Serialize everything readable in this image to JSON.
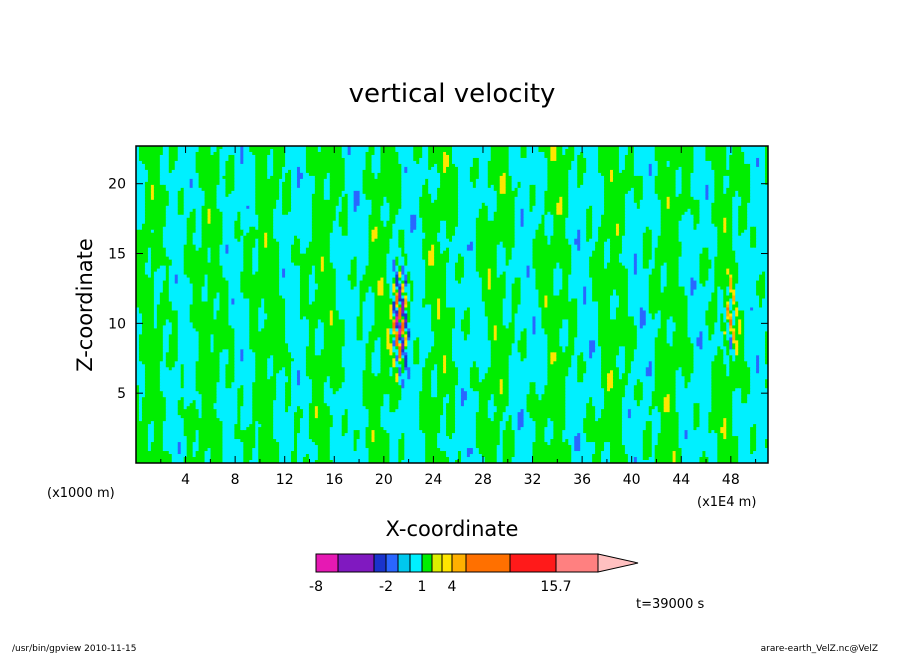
{
  "chart_data": {
    "type": "heatmap",
    "title": "vertical velocity",
    "xlabel": "X-coordinate",
    "ylabel": "Z-coordinate",
    "x_unit": "(x1E4 m)",
    "y_unit": "(x1000 m)",
    "xlim": [
      0,
      51
    ],
    "ylim": [
      0,
      22.7
    ],
    "x_ticks": [
      4,
      8,
      12,
      16,
      20,
      24,
      28,
      32,
      36,
      40,
      44,
      48
    ],
    "y_ticks": [
      5,
      10,
      15,
      20
    ],
    "colorbar": {
      "levels": [
        -8,
        -5,
        -3,
        -2,
        -1,
        0,
        1,
        2,
        3,
        4,
        7,
        11,
        15.7
      ],
      "colors": [
        "#e619b3",
        "#8019c0",
        "#1a33cc",
        "#2a66ff",
        "#00c8ee",
        "#00f0ff",
        "#00ee00",
        "#ddee00",
        "#ffe500",
        "#ffb000",
        "#ff7000",
        "#ff1a1a",
        "#ff8080",
        "#ffc0c0"
      ],
      "labels": [
        "-8",
        "-2",
        "1",
        "4",
        "15.7"
      ]
    },
    "plume_x": [
      21.3,
      48.0
    ],
    "time_label": "t=39000 s"
  },
  "footer": {
    "left": "/usr/bin/gpview   2010-11-15",
    "right": "arare-earth_VelZ.nc@VelZ"
  },
  "colors": {
    "positive": "#00ee00",
    "negative": "#00f0ff",
    "contour": "#222222"
  }
}
